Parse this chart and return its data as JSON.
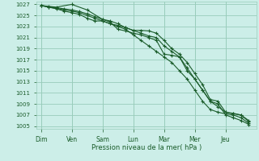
{
  "bg_color": "#cceee8",
  "grid_color": "#99ccbb",
  "line_color": "#1a5c2a",
  "title": "Pression niveau de la mer( hPa )",
  "ylim": [
    1004.5,
    1027.5
  ],
  "yticks": [
    1005,
    1007,
    1009,
    1011,
    1013,
    1015,
    1017,
    1019,
    1021,
    1023,
    1025,
    1027
  ],
  "days": [
    "Dim",
    "Ven",
    "Sam",
    "Lun",
    "Mar",
    "Mer",
    "Jeu"
  ],
  "day_x": [
    0,
    1,
    2,
    3,
    4,
    5,
    6
  ],
  "lines": [
    {
      "x": [
        0.0,
        0.25,
        0.5,
        0.75,
        1.0,
        1.25,
        1.5,
        1.75,
        2.0,
        2.25,
        2.5,
        2.75,
        3.0,
        3.25,
        3.5,
        3.75,
        4.0,
        4.25,
        4.5,
        4.75,
        5.0,
        5.25,
        5.5,
        5.75,
        6.0,
        6.25,
        6.5,
        6.75
      ],
      "y": [
        1026.8,
        1026.5,
        1026.3,
        1026.0,
        1025.8,
        1025.5,
        1025.0,
        1024.5,
        1024.0,
        1023.5,
        1023.0,
        1022.5,
        1021.5,
        1020.5,
        1019.5,
        1018.5,
        1017.5,
        1016.5,
        1015.0,
        1013.5,
        1011.5,
        1009.5,
        1008.0,
        1007.5,
        1007.2,
        1007.0,
        1006.5,
        1005.5
      ],
      "marker": true
    },
    {
      "x": [
        0.0,
        0.25,
        0.5,
        0.75,
        1.0,
        1.25,
        1.5,
        1.75,
        2.0,
        2.25,
        2.5,
        2.75,
        3.0,
        3.25,
        3.5,
        3.75,
        4.0,
        4.25,
        4.5,
        4.75,
        5.0,
        5.25,
        5.5,
        5.75,
        6.0,
        6.25,
        6.5,
        6.75
      ],
      "y": [
        1026.8,
        1026.6,
        1026.4,
        1026.2,
        1026.0,
        1025.7,
        1025.3,
        1024.8,
        1024.3,
        1024.0,
        1023.5,
        1022.8,
        1022.3,
        1021.8,
        1021.3,
        1021.0,
        1019.5,
        1018.5,
        1017.5,
        1015.5,
        1013.5,
        1011.5,
        1009.5,
        1008.5,
        1007.5,
        1007.2,
        1007.0,
        1005.8
      ],
      "marker": true
    },
    {
      "x": [
        0.0,
        0.5,
        1.0,
        1.5,
        2.0,
        2.25,
        2.5,
        2.75,
        3.0,
        3.25,
        3.5,
        3.75,
        4.0,
        4.25,
        4.5,
        4.75,
        5.0,
        5.25,
        5.5,
        5.75,
        6.0,
        6.25,
        6.5,
        6.75
      ],
      "y": [
        1026.8,
        1026.5,
        1027.0,
        1026.0,
        1024.3,
        1023.8,
        1022.5,
        1022.2,
        1021.8,
        1021.5,
        1021.0,
        1020.5,
        1018.0,
        1017.8,
        1017.5,
        1015.0,
        1013.5,
        1011.5,
        1009.5,
        1009.0,
        1007.0,
        1006.5,
        1006.0,
        1005.3
      ],
      "marker": true
    },
    {
      "x": [
        0.0,
        0.25,
        0.5,
        0.75,
        1.0,
        1.25,
        1.5,
        1.75,
        2.0,
        2.25,
        2.5,
        2.75,
        3.0,
        3.25,
        3.5,
        3.75,
        4.0,
        4.25,
        4.5,
        4.75,
        5.0,
        5.25,
        5.5,
        5.75,
        6.0,
        6.25,
        6.5,
        6.75
      ],
      "y": [
        1026.8,
        1026.5,
        1026.2,
        1025.8,
        1025.5,
        1025.2,
        1024.5,
        1024.0,
        1024.0,
        1023.5,
        1023.2,
        1022.8,
        1022.3,
        1022.3,
        1022.2,
        1021.8,
        1020.5,
        1019.0,
        1018.0,
        1016.5,
        1014.5,
        1012.5,
        1009.8,
        1009.5,
        1007.5,
        1007.3,
        1007.0,
        1006.0
      ],
      "marker": true
    }
  ]
}
